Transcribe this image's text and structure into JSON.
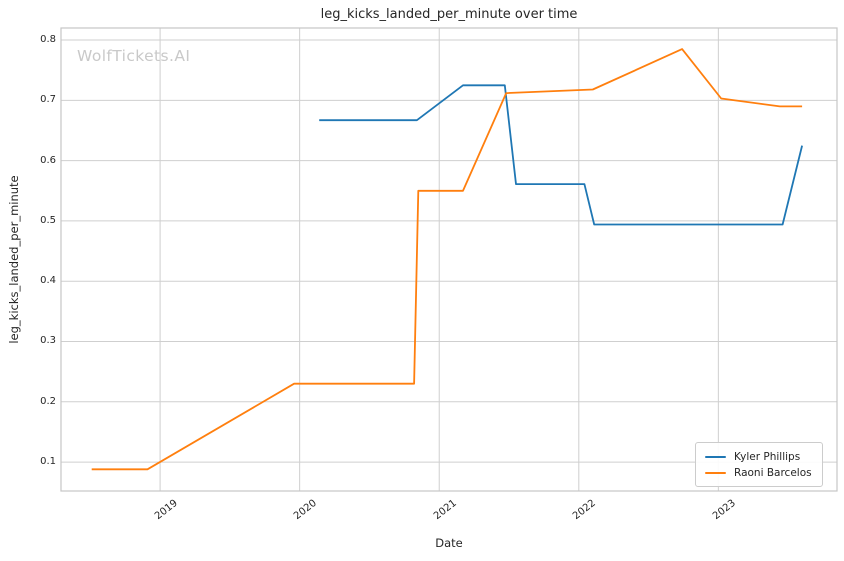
{
  "watermark": "WolfTickets.AI",
  "colors": {
    "kyler_phillips": "#1f77b4",
    "raoni_barcelos": "#ff7f0e",
    "grid": "#cfcfcf",
    "spine": "#c6c6c6",
    "text": "#262626",
    "watermark": "#c9c9c9"
  },
  "chart_data": {
    "type": "line",
    "title": "leg_kicks_landed_per_minute over time",
    "xlabel": "Date",
    "ylabel": "leg_kicks_landed_per_minute",
    "xlim": [
      2018.29,
      2023.85
    ],
    "ylim": [
      0.052,
      0.82
    ],
    "grid": true,
    "legend_position": "lower right",
    "x_ticks": {
      "values": [
        2019,
        2020,
        2021,
        2022,
        2023
      ],
      "labels": [
        "2019",
        "2020",
        "2021",
        "2022",
        "2023"
      ]
    },
    "y_ticks": {
      "values": [
        0.1,
        0.2,
        0.3,
        0.4,
        0.5,
        0.6,
        0.7,
        0.8
      ],
      "labels": [
        "0.1",
        "0.2",
        "0.3",
        "0.4",
        "0.5",
        "0.6",
        "0.7",
        "0.8"
      ]
    },
    "series": [
      {
        "name": "Kyler Phillips",
        "color": "#1f77b4",
        "x": [
          2020.14,
          2020.84,
          2021.17,
          2021.47,
          2021.55,
          2022.04,
          2022.11,
          2023.46,
          2023.6
        ],
        "y": [
          0.667,
          0.667,
          0.725,
          0.725,
          0.561,
          0.561,
          0.494,
          0.494,
          0.625
        ]
      },
      {
        "name": "Raoni Barcelos",
        "color": "#ff7f0e",
        "x": [
          2018.51,
          2018.91,
          2019.96,
          2020.82,
          2020.85,
          2021.17,
          2021.48,
          2022.1,
          2022.74,
          2023.02,
          2023.44,
          2023.6
        ],
        "y": [
          0.088,
          0.088,
          0.23,
          0.23,
          0.55,
          0.55,
          0.712,
          0.718,
          0.785,
          0.703,
          0.69,
          0.69
        ]
      }
    ]
  }
}
